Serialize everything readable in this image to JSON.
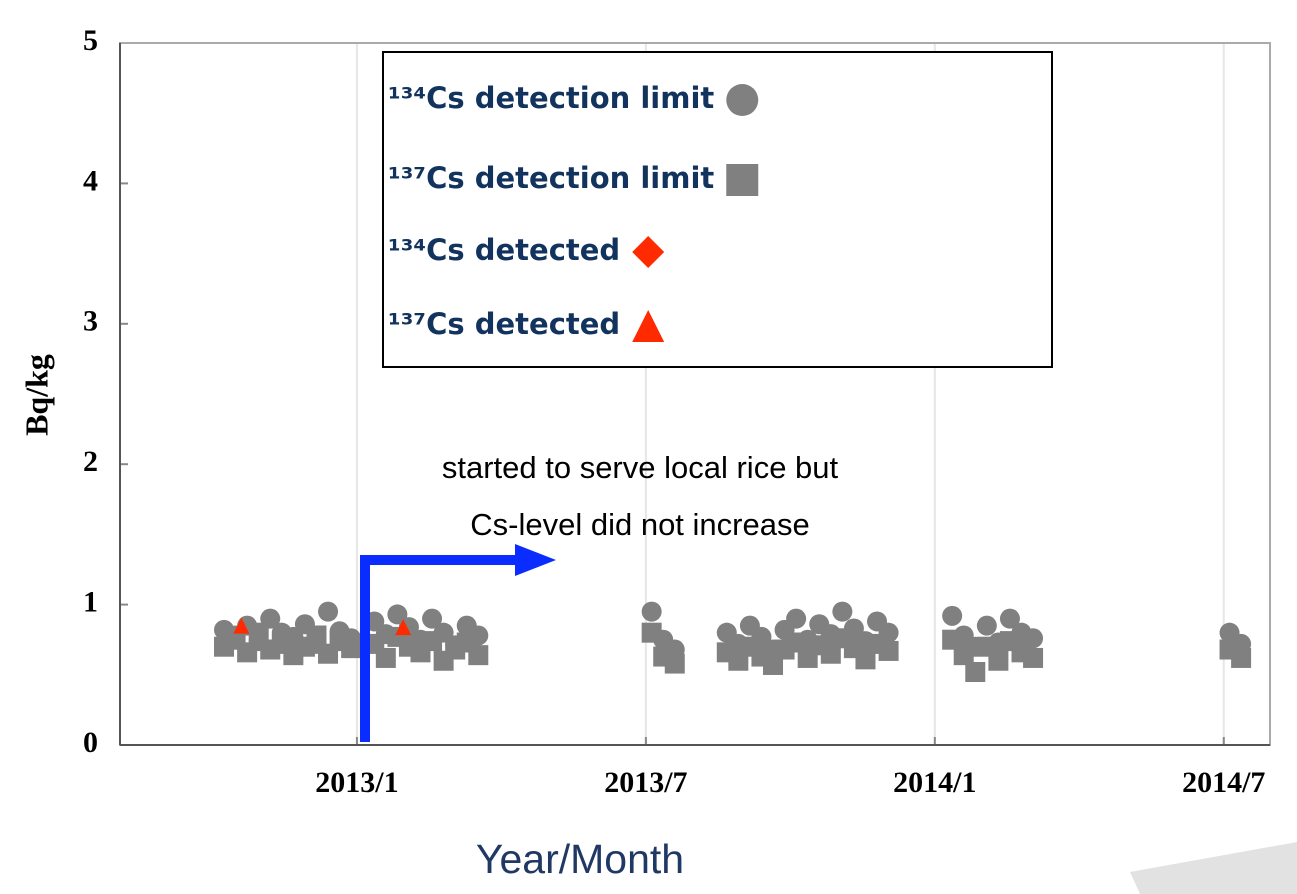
{
  "chart_data": {
    "type": "scatter",
    "y_label": "Bq/kg",
    "x_label": "Year/Month",
    "annotation": [
      "started to serve local rice but",
      "Cs-level did not increase"
    ],
    "xlim": [
      2012.59,
      2014.58
    ],
    "ylim": [
      0,
      5
    ],
    "xticks": [
      {
        "value": 2013.0,
        "label": "2013/1"
      },
      {
        "value": 2013.5,
        "label": "2013/7"
      },
      {
        "value": 2014.0,
        "label": "2014/1"
      },
      {
        "value": 2014.5,
        "label": "2014/7"
      }
    ],
    "yticks": [
      0,
      1,
      2,
      3,
      4,
      5
    ],
    "grid": true,
    "series": [
      {
        "name": "¹³⁴Cs detection limit",
        "color": "#808080",
        "marker": "circle",
        "x": [
          2012.77,
          2012.79,
          2012.81,
          2012.83,
          2012.85,
          2012.87,
          2012.89,
          2012.91,
          2012.93,
          2012.95,
          2012.97,
          2012.99,
          2013.03,
          2013.05,
          2013.07,
          2013.09,
          2013.11,
          2013.13,
          2013.15,
          2013.17,
          2013.19,
          2013.21,
          2013.51,
          2013.53,
          2013.55,
          2013.64,
          2013.66,
          2013.68,
          2013.7,
          2013.72,
          2013.74,
          2013.76,
          2013.78,
          2013.8,
          2013.82,
          2013.84,
          2013.86,
          2013.88,
          2013.9,
          2013.92,
          2014.03,
          2014.05,
          2014.07,
          2014.09,
          2014.11,
          2014.13,
          2014.15,
          2014.17,
          2014.51,
          2014.53
        ],
        "values": [
          0.82,
          0.78,
          0.85,
          0.74,
          0.9,
          0.8,
          0.77,
          0.86,
          0.72,
          0.95,
          0.81,
          0.76,
          0.88,
          0.79,
          0.93,
          0.84,
          0.75,
          0.9,
          0.8,
          0.71,
          0.85,
          0.78,
          0.95,
          0.75,
          0.68,
          0.8,
          0.72,
          0.85,
          0.77,
          0.68,
          0.82,
          0.9,
          0.75,
          0.86,
          0.79,
          0.95,
          0.83,
          0.74,
          0.88,
          0.8,
          0.92,
          0.78,
          0.7,
          0.85,
          0.73,
          0.9,
          0.8,
          0.76,
          0.8,
          0.72
        ]
      },
      {
        "name": "¹³⁷Cs detection limit",
        "color": "#808080",
        "marker": "square",
        "x": [
          2012.77,
          2012.79,
          2012.81,
          2012.83,
          2012.85,
          2012.87,
          2012.89,
          2012.91,
          2012.93,
          2012.95,
          2012.97,
          2012.99,
          2013.03,
          2013.05,
          2013.07,
          2013.09,
          2013.11,
          2013.13,
          2013.15,
          2013.17,
          2013.19,
          2013.21,
          2013.51,
          2013.53,
          2013.55,
          2013.64,
          2013.66,
          2013.68,
          2013.7,
          2013.72,
          2013.74,
          2013.76,
          2013.78,
          2013.8,
          2013.82,
          2013.84,
          2013.86,
          2013.88,
          2013.9,
          2013.92,
          2014.03,
          2014.05,
          2014.07,
          2014.09,
          2014.11,
          2014.13,
          2014.15,
          2014.17,
          2014.51,
          2014.53
        ],
        "values": [
          0.7,
          0.75,
          0.66,
          0.8,
          0.68,
          0.72,
          0.64,
          0.7,
          0.78,
          0.65,
          0.74,
          0.69,
          0.72,
          0.62,
          0.77,
          0.7,
          0.66,
          0.74,
          0.6,
          0.68,
          0.73,
          0.64,
          0.8,
          0.63,
          0.58,
          0.66,
          0.6,
          0.7,
          0.63,
          0.57,
          0.68,
          0.73,
          0.62,
          0.71,
          0.65,
          0.76,
          0.69,
          0.61,
          0.72,
          0.67,
          0.75,
          0.64,
          0.52,
          0.7,
          0.6,
          0.74,
          0.66,
          0.62,
          0.68,
          0.62
        ]
      },
      {
        "name": "¹³⁴Cs detected",
        "color": "#ff2a00",
        "marker": "diamond",
        "x": [],
        "values": []
      },
      {
        "name": "¹³⁷Cs detected",
        "color": "#ff2a00",
        "marker": "triangle",
        "x": [
          2012.8,
          2013.08
        ],
        "values": [
          0.85,
          0.84
        ]
      }
    ]
  }
}
